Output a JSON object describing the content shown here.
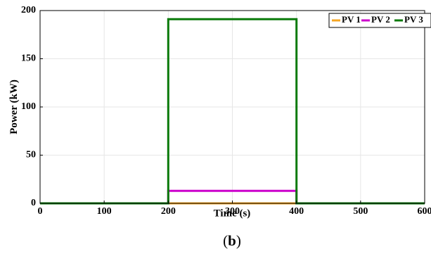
{
  "chart_data": {
    "type": "line",
    "xlabel": "Time (s)",
    "ylabel": "Power (kW)",
    "xlim": [
      0,
      600
    ],
    "ylim": [
      0,
      200
    ],
    "xticks": [
      0,
      100,
      200,
      300,
      400,
      500,
      600
    ],
    "yticks": [
      0,
      50,
      100,
      150,
      200
    ],
    "grid": true,
    "legend_position": "top-right",
    "series": [
      {
        "name": "PV 1",
        "color": "#f5a623",
        "x": [
          0,
          200,
          200,
          400,
          400,
          600
        ],
        "y": [
          0,
          0,
          0,
          0,
          0,
          0
        ]
      },
      {
        "name": "PV 2",
        "color": "#cc00cc",
        "x": [
          0,
          200,
          200,
          400,
          400,
          600
        ],
        "y": [
          0,
          0,
          13,
          13,
          0,
          0
        ]
      },
      {
        "name": "PV 3",
        "color": "#0a7a0a",
        "x": [
          0,
          200,
          200,
          400,
          400,
          600
        ],
        "y": [
          0,
          0,
          191,
          191,
          0,
          0
        ]
      }
    ]
  },
  "caption": {
    "open": "(",
    "letter": "b",
    "close": ")"
  }
}
